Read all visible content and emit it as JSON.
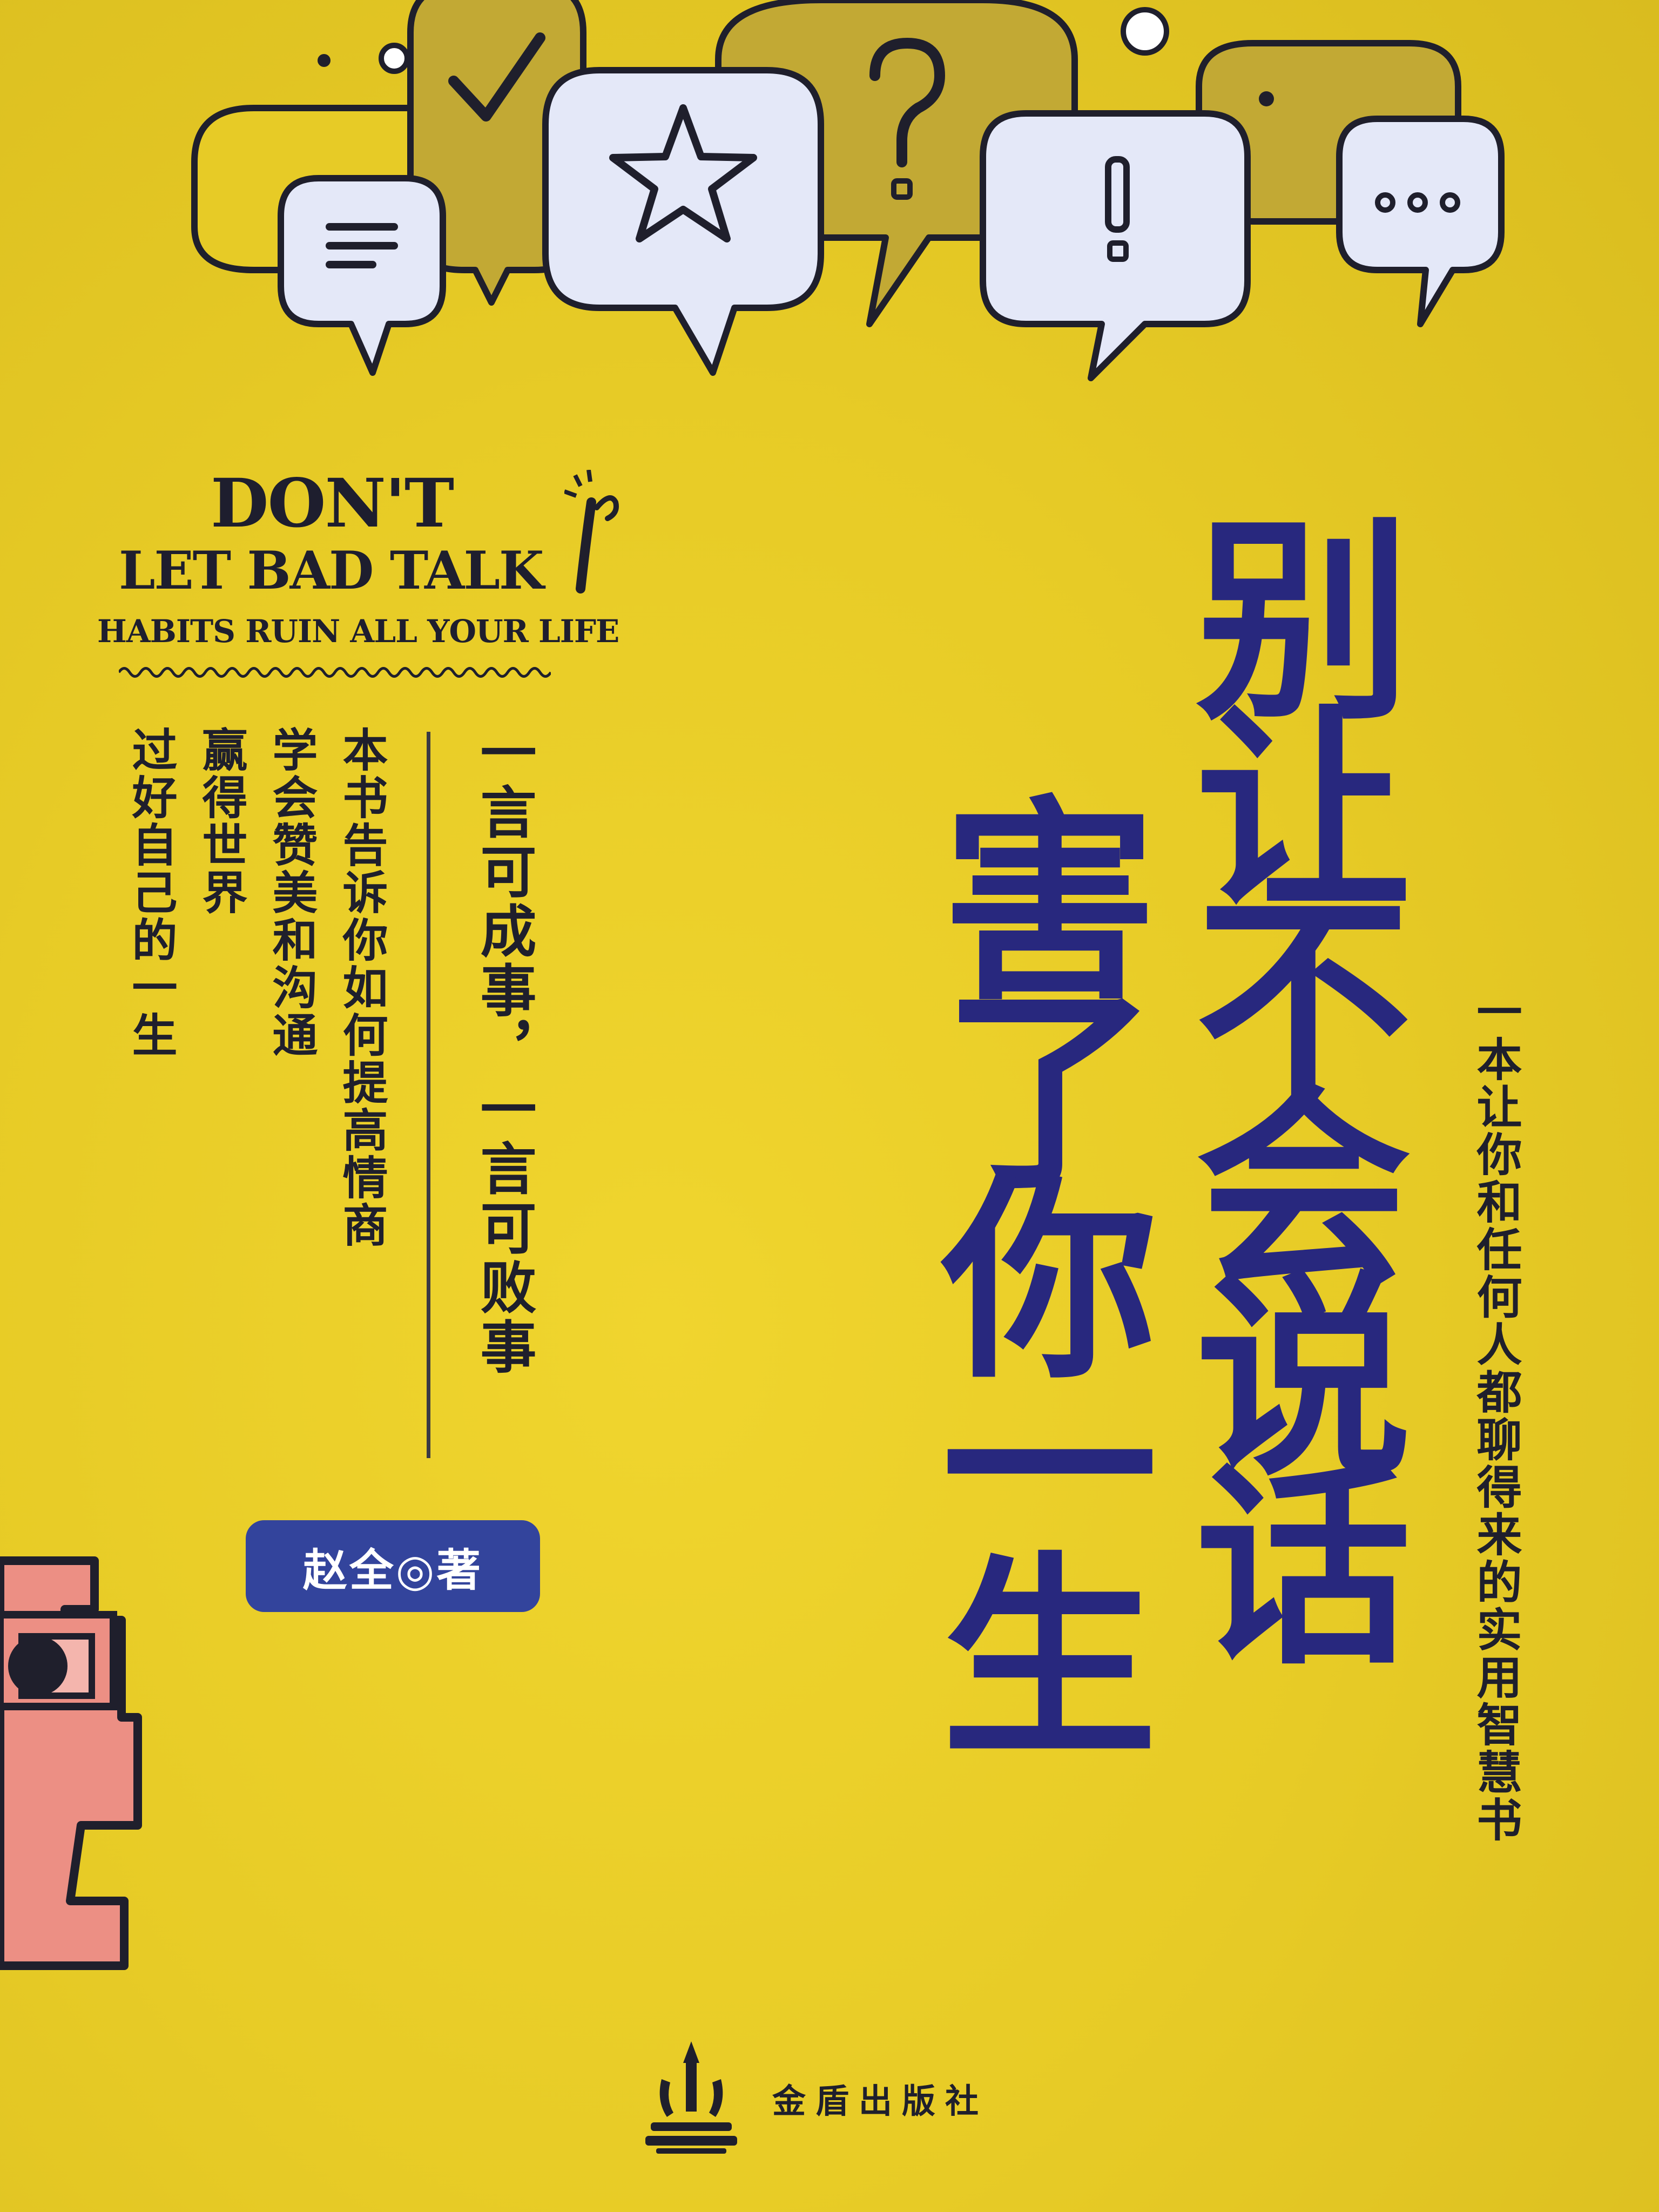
{
  "cover": {
    "english_title": {
      "line1": "DON'T",
      "line2": "LET BAD TALK",
      "line3": "HABITS RUIN ALL YOUR LIFE"
    },
    "main_title": {
      "line1": "别让不会说话",
      "line2": "害了你一生"
    },
    "subtitle": "一本让你和任何人都聊得来的实用智慧书",
    "motto": "一言可成事，一言可败事",
    "description": [
      "本书告诉你如何提高情商",
      "学会赞美和沟通",
      "赢得世界",
      "过好自己的一生"
    ],
    "author": "赵全◎著",
    "publisher": "金盾出版社",
    "bubble_glyphs": {
      "check": "✓",
      "star": "★",
      "question": "?",
      "exclaim": "!",
      "dots": "..."
    },
    "icons": [
      "speech-bubble-icon",
      "star-icon",
      "checkmark-icon",
      "question-icon",
      "exclamation-icon",
      "ellipsis-icon",
      "pencil-icon",
      "publisher-logo-icon"
    ],
    "colors": {
      "background": "#e7cb26",
      "title": "#28287e",
      "badge": "#33449c",
      "text": "#1f1f2c",
      "bubble_light": "#e4e8f8",
      "bubble_olive": "#c2a934",
      "figure_pink": "#ec8f84"
    }
  }
}
